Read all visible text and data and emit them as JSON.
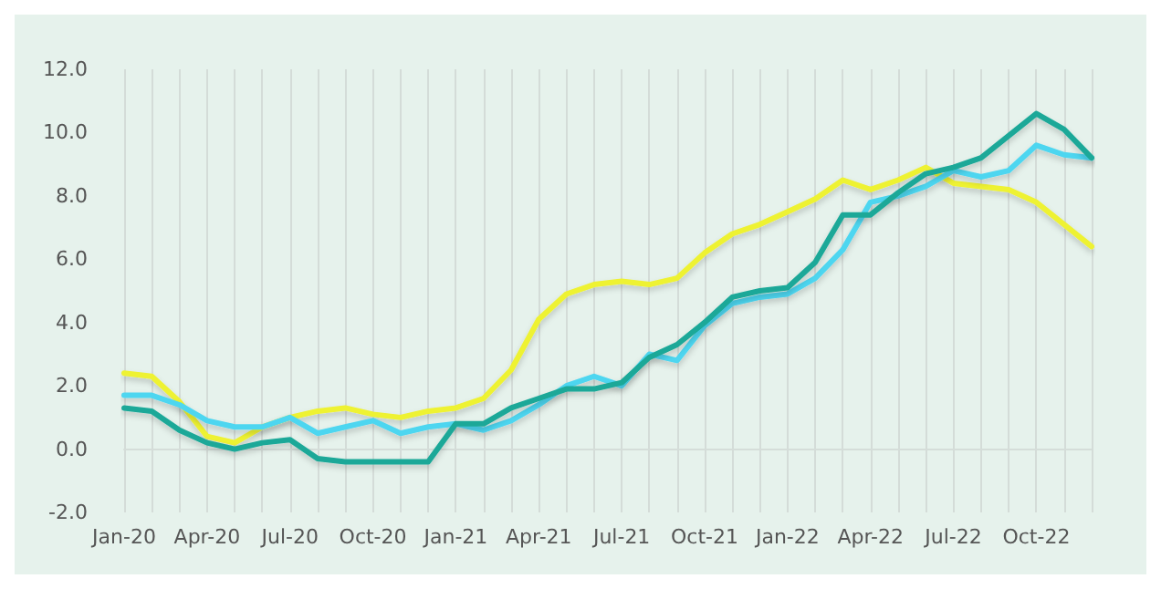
{
  "chart_data": {
    "type": "line",
    "categories": [
      "Jan-20",
      null,
      null,
      "Apr-20",
      null,
      null,
      "Jul-20",
      null,
      null,
      "Oct-20",
      null,
      null,
      "Jan-21",
      null,
      null,
      "Apr-21",
      null,
      null,
      "Jul-21",
      null,
      null,
      "Oct-21",
      null,
      null,
      "Jan-22",
      null,
      null,
      "Apr-22",
      null,
      null,
      "Jul-22",
      null,
      null,
      "Oct-22",
      null,
      null
    ],
    "series": [
      {
        "color": "#eef233",
        "values": [
          2.4,
          2.3,
          1.5,
          0.4,
          0.2,
          0.7,
          1.0,
          1.2,
          1.3,
          1.1,
          1.0,
          1.2,
          1.3,
          1.6,
          2.5,
          4.1,
          4.9,
          5.2,
          5.3,
          5.2,
          5.4,
          6.2,
          6.8,
          7.1,
          7.5,
          7.9,
          8.5,
          8.2,
          8.5,
          8.9,
          8.4,
          8.3,
          8.2,
          7.8,
          7.1,
          6.4
        ]
      },
      {
        "color": "#4dd6f0",
        "values": [
          1.7,
          1.7,
          1.4,
          0.9,
          0.7,
          0.7,
          1.0,
          0.5,
          0.7,
          0.9,
          0.5,
          0.7,
          0.8,
          0.6,
          0.9,
          1.4,
          2.0,
          2.3,
          2.0,
          3.0,
          2.8,
          3.9,
          4.6,
          4.8,
          4.9,
          5.4,
          6.3,
          7.8,
          8.0,
          8.3,
          8.8,
          8.6,
          8.8,
          9.6,
          9.3,
          9.2
        ]
      },
      {
        "color": "#1aa898",
        "values": [
          1.3,
          1.2,
          0.6,
          0.2,
          0.0,
          0.2,
          0.3,
          -0.3,
          -0.4,
          -0.4,
          -0.4,
          -0.4,
          0.8,
          0.8,
          1.3,
          1.6,
          1.9,
          1.9,
          2.1,
          2.9,
          3.3,
          4.0,
          4.8,
          5.0,
          5.1,
          5.9,
          7.4,
          7.4,
          8.1,
          8.7,
          8.9,
          9.2,
          9.9,
          10.6,
          10.1,
          9.2
        ]
      }
    ],
    "ylim": [
      -2,
      12
    ],
    "yticks": [
      {
        "value": -2,
        "label": "-2.0"
      },
      {
        "value": 0,
        "label": "0.0"
      },
      {
        "value": 2,
        "label": "2.0"
      },
      {
        "value": 4,
        "label": "4.0"
      },
      {
        "value": 6,
        "label": "6.0"
      },
      {
        "value": 8,
        "label": "8.0"
      },
      {
        "value": 10,
        "label": "10.0"
      },
      {
        "value": 12,
        "label": "12.0"
      }
    ],
    "grid": "x"
  }
}
